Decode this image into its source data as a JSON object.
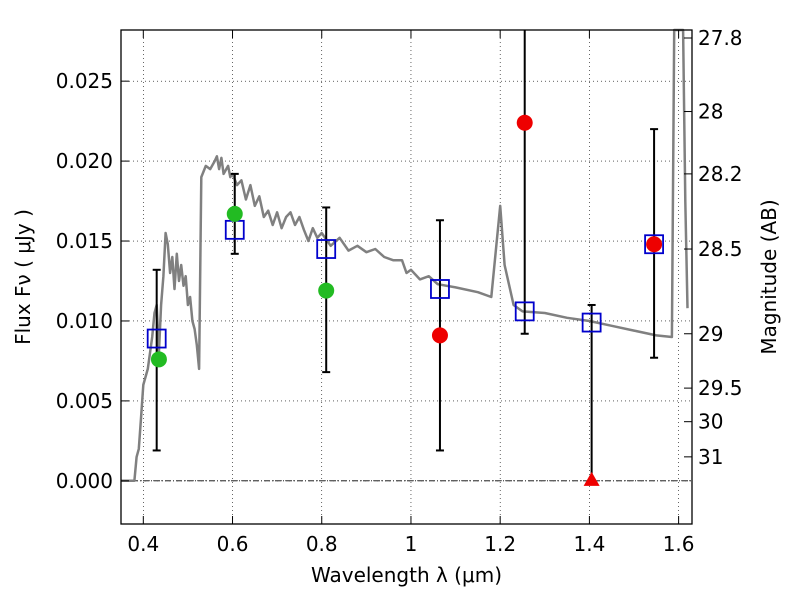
{
  "chart_data": {
    "type": "scatter",
    "xlabel": "Wavelength  λ (μm)",
    "ylabel": "Flux  Fν  ( μJy )",
    "ylabel_right": "Magnitude (AB)",
    "xlim": [
      0.35,
      1.63
    ],
    "ylim": [
      -0.0027,
      0.0282
    ],
    "grid": true,
    "x_ticks": [
      0.4,
      0.6,
      0.8,
      1.0,
      1.2,
      1.4,
      1.6
    ],
    "x_tick_labels": [
      "0.4",
      "0.6",
      "0.8",
      "1",
      "1.2",
      "1.4",
      "1.6"
    ],
    "y_ticks": [
      0.0,
      0.005,
      0.01,
      0.015,
      0.02,
      0.025
    ],
    "y_tick_labels": [
      "0.000",
      "0.005",
      "0.010",
      "0.015",
      "0.020",
      "0.025"
    ],
    "right_ticks": [
      {
        "label": "27.8",
        "flux": 0.0277
      },
      {
        "label": "28",
        "flux": 0.0231
      },
      {
        "label": "28.2",
        "flux": 0.0192
      },
      {
        "label": "28.5",
        "flux": 0.0145
      },
      {
        "label": "29",
        "flux": 0.0092
      },
      {
        "label": "29.5",
        "flux": 0.0058
      },
      {
        "label": "30",
        "flux": 0.0037
      },
      {
        "label": "31",
        "flux": 0.0015
      }
    ],
    "model_sed": {
      "color": "#808080",
      "points": [
        [
          0.35,
          0
        ],
        [
          0.38,
          0
        ],
        [
          0.385,
          0.0015
        ],
        [
          0.39,
          0.002
        ],
        [
          0.395,
          0.004
        ],
        [
          0.4,
          0.006
        ],
        [
          0.41,
          0.007
        ],
        [
          0.42,
          0.009
        ],
        [
          0.425,
          0.0105
        ],
        [
          0.43,
          0.011
        ],
        [
          0.435,
          0.008
        ],
        [
          0.44,
          0.011
        ],
        [
          0.445,
          0.0128
        ],
        [
          0.45,
          0.0155
        ],
        [
          0.455,
          0.0148
        ],
        [
          0.46,
          0.013
        ],
        [
          0.465,
          0.014
        ],
        [
          0.47,
          0.012
        ],
        [
          0.475,
          0.0142
        ],
        [
          0.48,
          0.0125
        ],
        [
          0.485,
          0.0135
        ],
        [
          0.49,
          0.0122
        ],
        [
          0.495,
          0.0128
        ],
        [
          0.5,
          0.011
        ],
        [
          0.505,
          0.0115
        ],
        [
          0.51,
          0.01
        ],
        [
          0.515,
          0.0095
        ],
        [
          0.52,
          0.0085
        ],
        [
          0.525,
          0.007
        ],
        [
          0.53,
          0.019
        ],
        [
          0.54,
          0.0197
        ],
        [
          0.55,
          0.0195
        ],
        [
          0.56,
          0.02
        ],
        [
          0.565,
          0.0203
        ],
        [
          0.57,
          0.0195
        ],
        [
          0.575,
          0.0202
        ],
        [
          0.58,
          0.0192
        ],
        [
          0.59,
          0.0197
        ],
        [
          0.595,
          0.019
        ],
        [
          0.6,
          0.0192
        ],
        [
          0.61,
          0.0185
        ],
        [
          0.62,
          0.0188
        ],
        [
          0.63,
          0.0176
        ],
        [
          0.64,
          0.0185
        ],
        [
          0.65,
          0.0172
        ],
        [
          0.66,
          0.0178
        ],
        [
          0.67,
          0.0165
        ],
        [
          0.68,
          0.0169
        ],
        [
          0.69,
          0.016
        ],
        [
          0.7,
          0.0168
        ],
        [
          0.71,
          0.0158
        ],
        [
          0.72,
          0.0165
        ],
        [
          0.73,
          0.0168
        ],
        [
          0.74,
          0.016
        ],
        [
          0.75,
          0.0165
        ],
        [
          0.76,
          0.0157
        ],
        [
          0.77,
          0.015
        ],
        [
          0.78,
          0.0158
        ],
        [
          0.79,
          0.0152
        ],
        [
          0.8,
          0.0155
        ],
        [
          0.82,
          0.0147
        ],
        [
          0.84,
          0.0152
        ],
        [
          0.86,
          0.0144
        ],
        [
          0.88,
          0.0147
        ],
        [
          0.9,
          0.0143
        ],
        [
          0.92,
          0.0145
        ],
        [
          0.94,
          0.014
        ],
        [
          0.96,
          0.0138
        ],
        [
          0.98,
          0.0138
        ],
        [
          0.99,
          0.013
        ],
        [
          1.0,
          0.0132
        ],
        [
          1.02,
          0.0126
        ],
        [
          1.04,
          0.0128
        ],
        [
          1.06,
          0.0123
        ],
        [
          1.1,
          0.0121
        ],
        [
          1.15,
          0.0118
        ],
        [
          1.18,
          0.0115
        ],
        [
          1.2,
          0.0172
        ],
        [
          1.21,
          0.0135
        ],
        [
          1.23,
          0.011
        ],
        [
          1.25,
          0.0106
        ],
        [
          1.3,
          0.0105
        ],
        [
          1.35,
          0.0102
        ],
        [
          1.4,
          0.01
        ],
        [
          1.45,
          0.0097
        ],
        [
          1.5,
          0.0094
        ],
        [
          1.55,
          0.0091
        ],
        [
          1.585,
          0.009
        ],
        [
          1.59,
          0.0285
        ],
        [
          1.6,
          0.0282
        ],
        [
          1.61,
          0.0285
        ],
        [
          1.615,
          0.0175
        ],
        [
          1.62,
          0.0108
        ]
      ]
    },
    "series": [
      {
        "name": "",
        "marker": "open-square",
        "color": "#0000cc",
        "points": [
          {
            "x": 0.43,
            "y": 0.0089,
            "yerr_low": 0.0019,
            "yerr_high": 0.0132
          },
          {
            "x": 0.605,
            "y": 0.0157,
            "yerr_low": 0.0142,
            "yerr_high": 0.0192
          },
          {
            "x": 0.81,
            "y": 0.0145,
            "yerr_low": 0.0068,
            "yerr_high": 0.0171
          },
          {
            "x": 1.065,
            "y": 0.012,
            "yerr_low": 0.0019,
            "yerr_high": 0.0163
          },
          {
            "x": 1.255,
            "y": 0.0106,
            "yerr_low": 0.0092,
            "yerr_high": 0.0285
          },
          {
            "x": 1.405,
            "y": 0.0099,
            "yerr_low": 0.0,
            "yerr_high": 0.011
          },
          {
            "x": 1.545,
            "y": 0.0148,
            "yerr_low": 0.0077,
            "yerr_high": 0.022
          }
        ]
      },
      {
        "name": "",
        "marker": "filled-circle",
        "color": "#22bb22",
        "points": [
          {
            "x": 0.435,
            "y": 0.0076
          },
          {
            "x": 0.605,
            "y": 0.0167
          },
          {
            "x": 0.81,
            "y": 0.0119
          }
        ]
      },
      {
        "name": "",
        "marker": "filled-circle",
        "color": "#ee0000",
        "points": [
          {
            "x": 1.065,
            "y": 0.0091
          },
          {
            "x": 1.255,
            "y": 0.0224
          },
          {
            "x": 1.545,
            "y": 0.0148
          }
        ]
      },
      {
        "name": "",
        "marker": "filled-triangle",
        "color": "#ee0000",
        "points": [
          {
            "x": 1.405,
            "y": 0.0
          }
        ]
      }
    ]
  }
}
